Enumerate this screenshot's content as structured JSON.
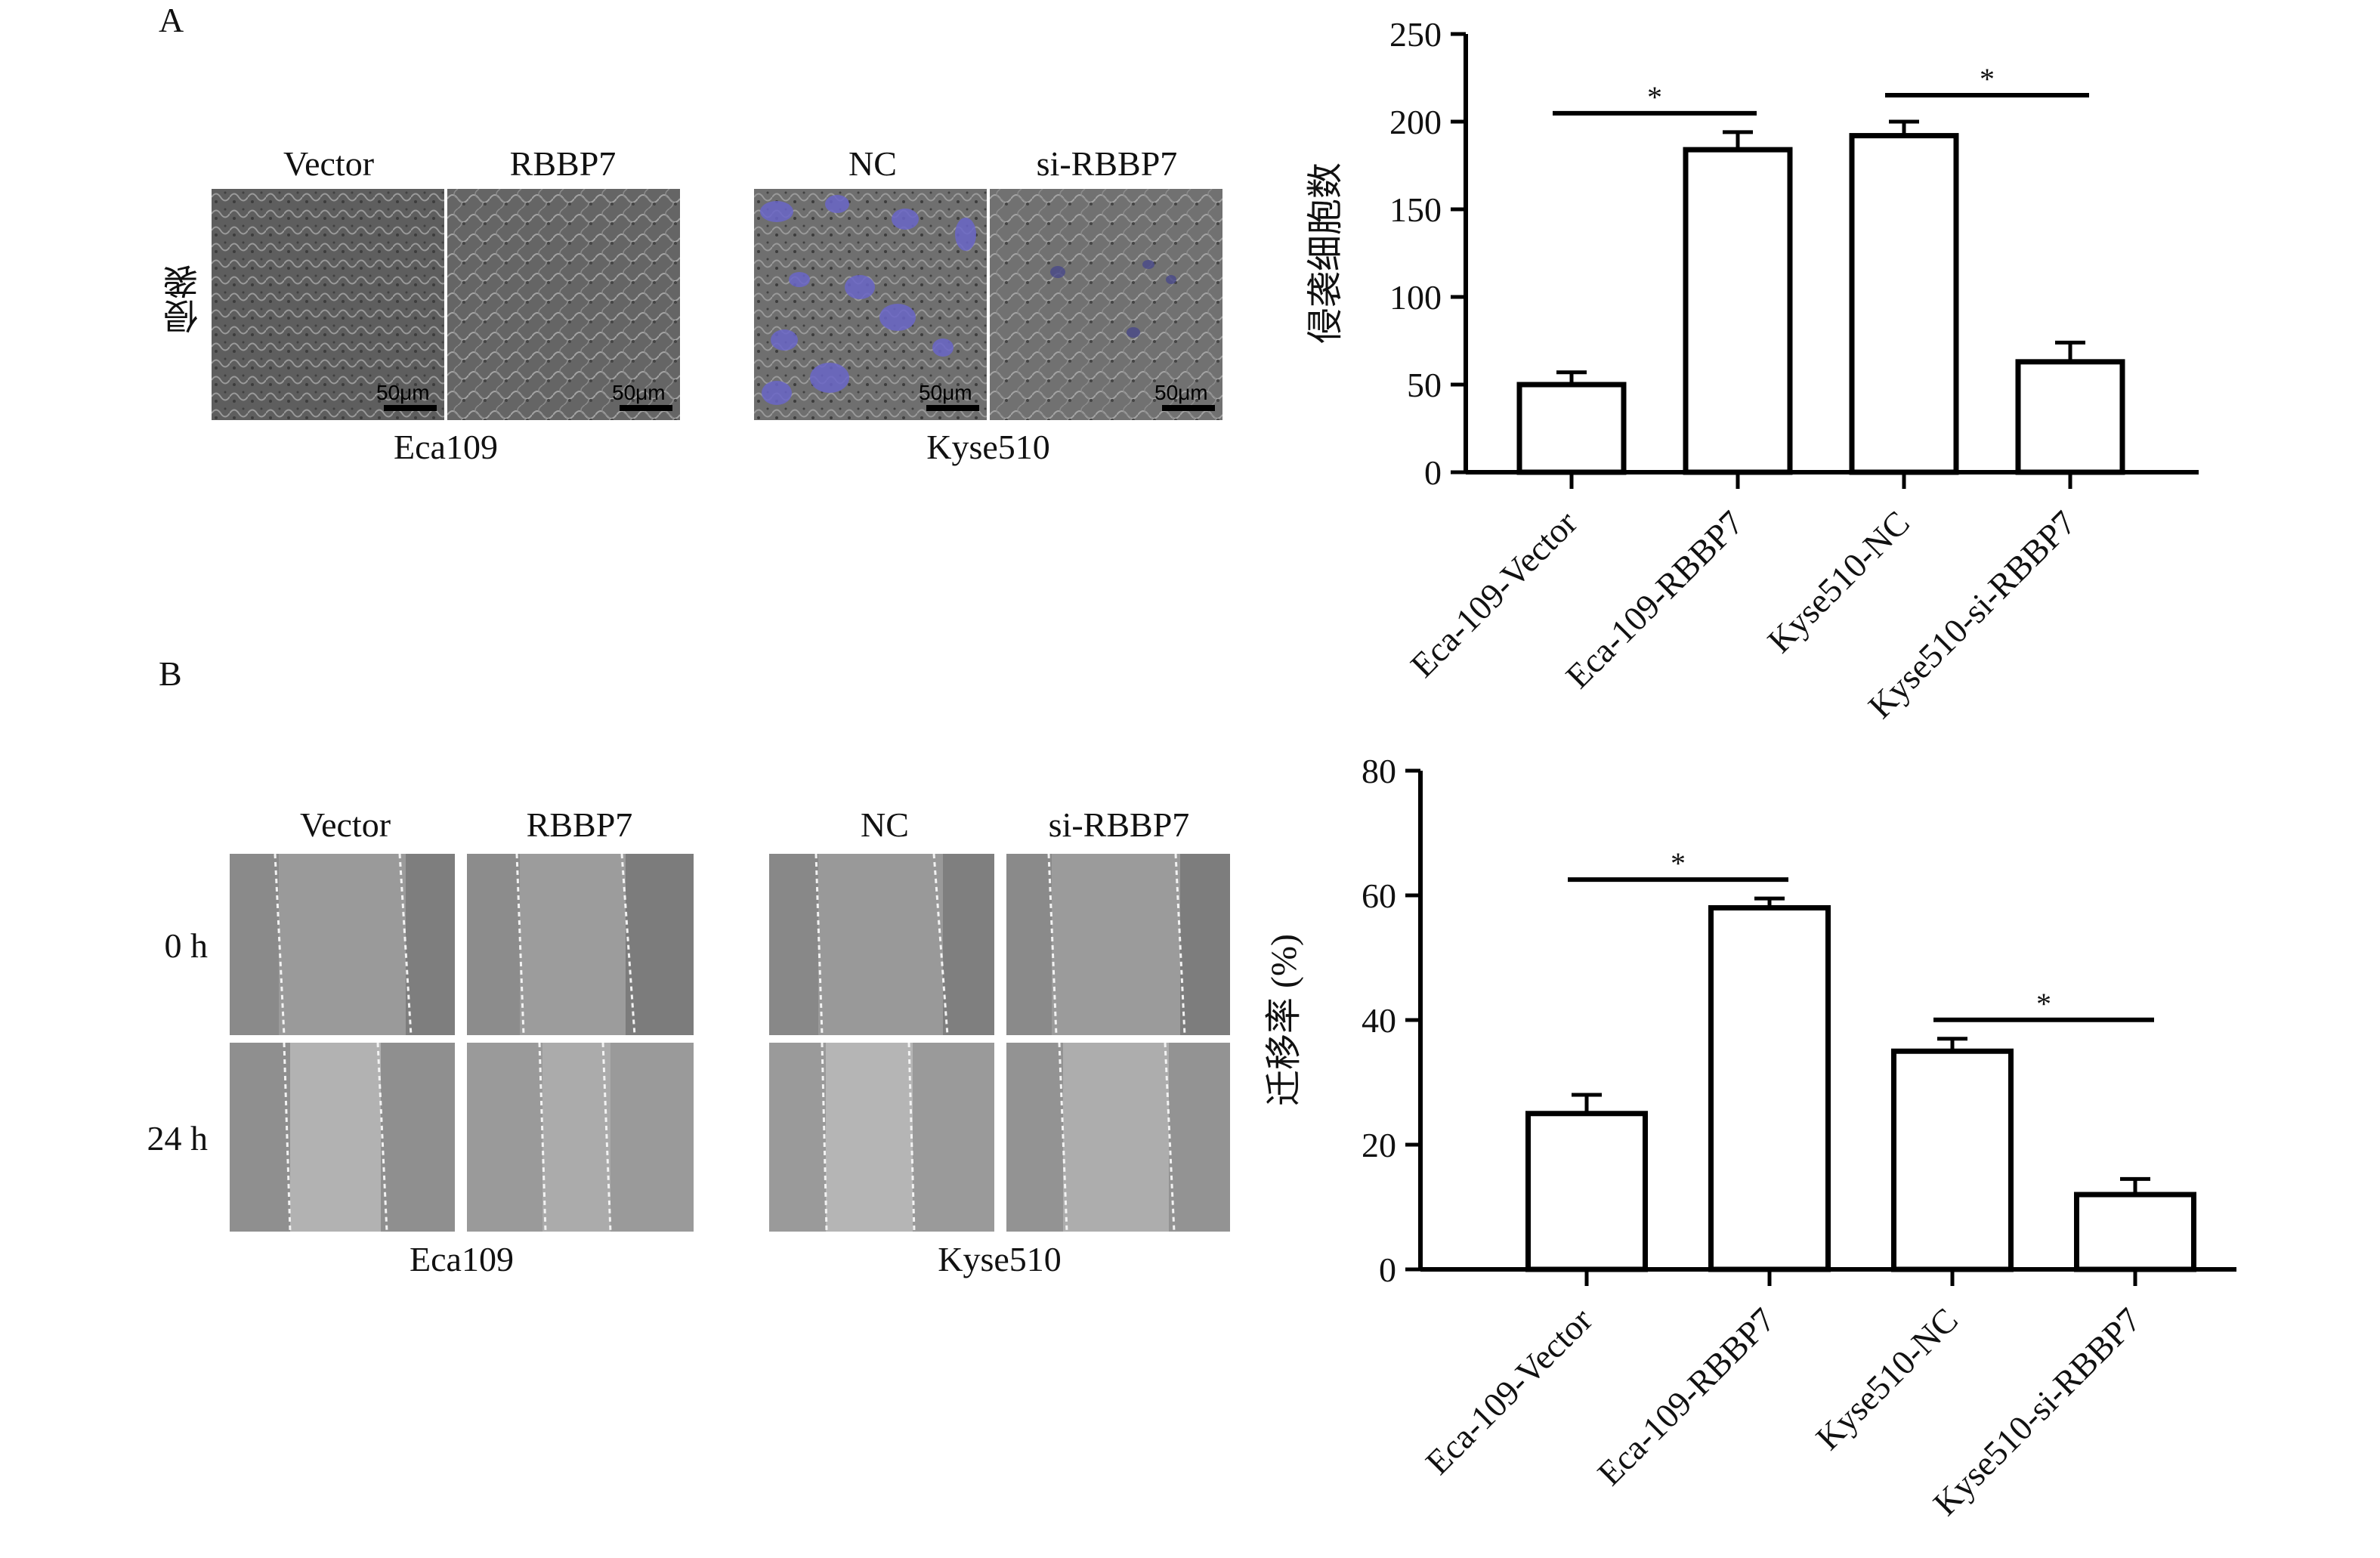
{
  "panels": {
    "A": {
      "letter": "A",
      "row_label": "侵袭",
      "group1": {
        "caption": "Eca109",
        "images": [
          {
            "label": "Vector",
            "scale": "50μm"
          },
          {
            "label": "RBBP7",
            "scale": "50μm"
          }
        ]
      },
      "group2": {
        "caption": "Kyse510",
        "images": [
          {
            "label": "NC",
            "scale": "50μm"
          },
          {
            "label": "si-RBBP7",
            "scale": "50μm"
          }
        ]
      }
    },
    "B": {
      "letter": "B",
      "row_labels": [
        "0 h",
        "24 h"
      ],
      "group1": {
        "caption": "Eca109",
        "images": [
          {
            "label": "Vector"
          },
          {
            "label": "RBBP7"
          }
        ]
      },
      "group2": {
        "caption": "Kyse510",
        "images": [
          {
            "label": "NC"
          },
          {
            "label": "si-RBBP7"
          }
        ]
      }
    }
  },
  "chart_data": [
    {
      "type": "bar",
      "ylabel": "侵袭细胞数",
      "xlabel": "",
      "categories": [
        "Eca-109-Vector",
        "Eca-109-RBBP7",
        "Kyse510-NC",
        "Kyse510-si-RBBP7"
      ],
      "values": [
        50,
        184,
        192,
        63
      ],
      "errors": [
        7,
        10,
        8,
        11
      ],
      "ylim": [
        0,
        250
      ],
      "yticks": [
        "0",
        "50",
        "100",
        "150",
        "200",
        "250"
      ],
      "significance": [
        {
          "from": 0,
          "to": 1,
          "label": "*"
        },
        {
          "from": 2,
          "to": 3,
          "label": "*"
        }
      ]
    },
    {
      "type": "bar",
      "ylabel": "迁移率 (%)",
      "xlabel": "",
      "categories": [
        "Eca-109-Vector",
        "Eca-109-RBBP7",
        "Kyse510-NC",
        "Kyse510-si-RBBP7"
      ],
      "values": [
        25,
        58,
        35,
        12
      ],
      "errors": [
        3,
        1.5,
        2,
        2.5
      ],
      "ylim": [
        0,
        80
      ],
      "yticks": [
        "0",
        "20",
        "40",
        "60",
        "80"
      ],
      "significance": [
        {
          "from": 0,
          "to": 1,
          "label": "*"
        },
        {
          "from": 2,
          "to": 3,
          "label": "*"
        }
      ]
    }
  ]
}
